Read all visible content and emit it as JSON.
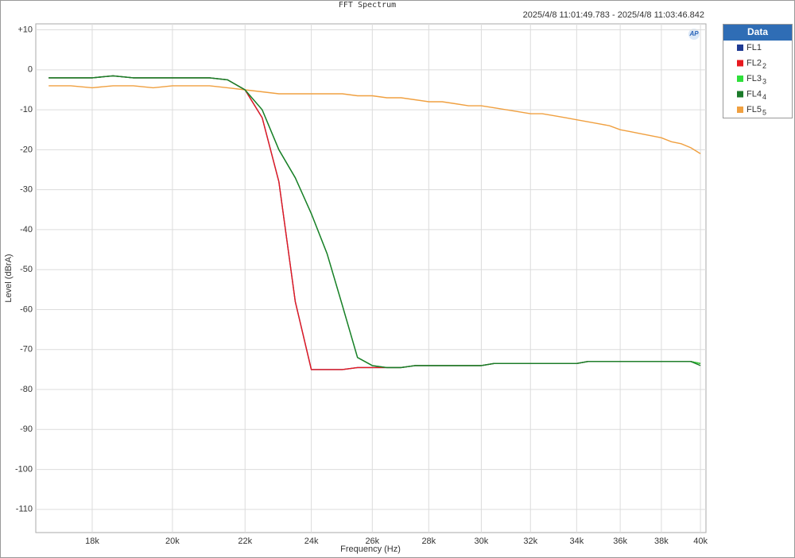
{
  "chart_data": {
    "type": "line",
    "title": "FFT Spectrum",
    "subtitle": "2025/4/8 11:01:49.783 -   2025/4/8 11:03:46.842",
    "logo": "AP",
    "x_label": "Frequency (Hz)",
    "y_label": "Level (dBrA)",
    "legend_title": "Data",
    "legend_position": "outside-right",
    "xscale": "log",
    "grid": true,
    "xlim": [
      16715,
      40290
    ],
    "ylim": [
      -115.8,
      11.5
    ],
    "xticks": [
      {
        "value": 18000,
        "label": "18k"
      },
      {
        "value": 20000,
        "label": "20k"
      },
      {
        "value": 22000,
        "label": "22k"
      },
      {
        "value": 24000,
        "label": "24k"
      },
      {
        "value": 26000,
        "label": "26k"
      },
      {
        "value": 28000,
        "label": "28k"
      },
      {
        "value": 30000,
        "label": "30k"
      },
      {
        "value": 32000,
        "label": "32k"
      },
      {
        "value": 34000,
        "label": "34k"
      },
      {
        "value": 36000,
        "label": "36k"
      },
      {
        "value": 38000,
        "label": "38k"
      },
      {
        "value": 40000,
        "label": "40k"
      }
    ],
    "yticks": [
      {
        "value": 10,
        "label": "+10"
      },
      0,
      -10,
      -20,
      -30,
      -40,
      -50,
      -60,
      -70,
      -80,
      -90,
      -100,
      -110
    ],
    "x": [
      17000,
      17500,
      18000,
      18500,
      19000,
      19500,
      20000,
      20500,
      21000,
      21500,
      22000,
      22500,
      23000,
      23500,
      24000,
      24500,
      25000,
      25500,
      26000,
      26500,
      27000,
      27500,
      28000,
      28500,
      29000,
      29500,
      30000,
      30500,
      31000,
      31500,
      32000,
      32500,
      33000,
      33500,
      34000,
      34500,
      35000,
      35500,
      36000,
      36500,
      37000,
      37500,
      38000,
      38500,
      39000,
      39500,
      40000
    ],
    "series": [
      {
        "name": "FL5",
        "subscript": "5",
        "color": "#f0a040",
        "values": [
          -4,
          -4,
          -4.5,
          -4,
          -4,
          -4.5,
          -4,
          -4,
          -4,
          -4.5,
          -5,
          -5.5,
          -6,
          -6,
          -6,
          -6,
          -6,
          -6.5,
          -6.5,
          -7,
          -7,
          -7.5,
          -8,
          -8,
          -8.5,
          -9,
          -9,
          -9.5,
          -10,
          -10.5,
          -11,
          -11,
          -11.5,
          -12,
          -12.5,
          -13,
          -13.5,
          -14,
          -15,
          -15.5,
          -16,
          -16.5,
          -17,
          -18,
          -18.5,
          -19.5,
          -21
        ]
      },
      {
        "name": "FL1",
        "color": "#1f3a93",
        "values": [
          -2,
          -2,
          -2,
          -1.5,
          -2,
          -2,
          -2,
          -2,
          -2,
          -2.5,
          -5,
          -12,
          -28,
          -58,
          -75,
          -75,
          -75,
          -74.5,
          -74.5,
          -74.5,
          -74.5,
          -74,
          -74,
          -74,
          -74,
          -74,
          -74,
          -73.5,
          -73.5,
          -73.5,
          -73.5,
          -73.5,
          -73.5,
          -73.5,
          -73.5,
          -73,
          -73,
          -73,
          -73,
          -73,
          -73,
          -73,
          -73,
          -73,
          -73,
          -73,
          -73.5
        ]
      },
      {
        "name": "FL2",
        "subscript": "2",
        "color": "#e8191f",
        "values": [
          -2,
          -2,
          -2,
          -1.5,
          -2,
          -2,
          -2,
          -2,
          -2,
          -2.5,
          -5,
          -12,
          -28,
          -58,
          -75,
          -75,
          -75,
          -74.5,
          -74.5,
          -74.5,
          -74.5,
          -74,
          -74,
          -74,
          -74,
          -74,
          -74,
          -73.5,
          -73.5,
          -73.5,
          -73.5,
          -73.5,
          -73.5,
          -73.5,
          -73.5,
          -73,
          -73,
          -73,
          -73,
          -73,
          -73,
          -73,
          -73,
          -73,
          -73,
          -73,
          -73.5
        ]
      },
      {
        "name": "FL3",
        "subscript": "3",
        "color": "#2ee03a",
        "values": [
          -2,
          -2,
          -2,
          -1.5,
          -2,
          -2,
          -2,
          -2,
          -2,
          -2.5,
          -5,
          -10,
          -20,
          -27,
          -36,
          -46,
          -59,
          -72,
          -74,
          -74.5,
          -74.5,
          -74,
          -74,
          -74,
          -74,
          -74,
          -74,
          -73.5,
          -73.5,
          -73.5,
          -73.5,
          -73.5,
          -73.5,
          -73.5,
          -73.5,
          -73,
          -73,
          -73,
          -73,
          -73,
          -73,
          -73,
          -73,
          -73,
          -73,
          -73,
          -73.5
        ]
      },
      {
        "name": "FL4",
        "subscript": "4",
        "color": "#1b7a2a",
        "values": [
          -2,
          -2,
          -2,
          -1.5,
          -2,
          -2,
          -2,
          -2,
          -2,
          -2.5,
          -5,
          -10,
          -20,
          -27,
          -36,
          -46,
          -59,
          -72,
          -74,
          -74.5,
          -74.5,
          -74,
          -74,
          -74,
          -74,
          -74,
          -74,
          -73.5,
          -73.5,
          -73.5,
          -73.5,
          -73.5,
          -73.5,
          -73.5,
          -73.5,
          -73,
          -73,
          -73,
          -73,
          -73,
          -73,
          -73,
          -73,
          -73,
          -73,
          -73,
          -74
        ]
      }
    ]
  }
}
